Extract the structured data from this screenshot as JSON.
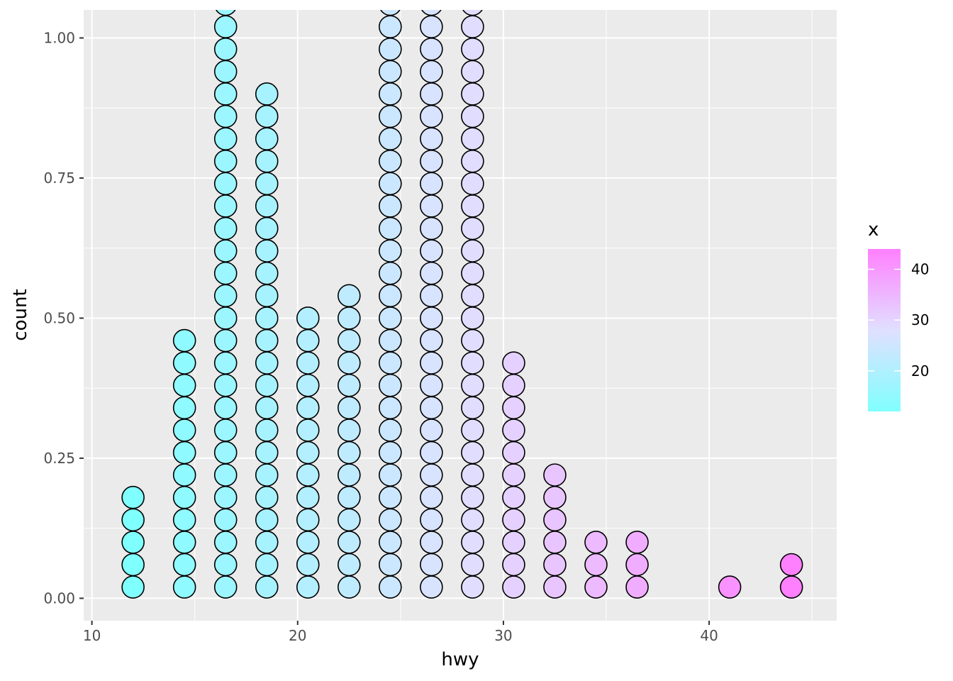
{
  "chart_data": {
    "type": "dotplot",
    "xlabel": "hwy",
    "ylabel": "count",
    "xlim": [
      9.6,
      46.2
    ],
    "ylim": [
      -0.04,
      1.05
    ],
    "x_ticks": [
      10,
      20,
      30,
      40
    ],
    "x_tick_labels": [
      "10",
      "20",
      "30",
      "40"
    ],
    "y_ticks": [
      0.0,
      0.25,
      0.5,
      0.75,
      1.0
    ],
    "y_tick_labels": [
      "0.00",
      "0.25",
      "0.50",
      "0.75",
      "1.00"
    ],
    "grid": true,
    "dot_stack_step": 0.04,
    "dot_first_center": 0.02,
    "dots": [
      {
        "x": 12,
        "count": 5
      },
      {
        "x": 14.5,
        "count": 12
      },
      {
        "x": 16.5,
        "count": 27
      },
      {
        "x": 18.5,
        "count": 23
      },
      {
        "x": 20.5,
        "count": 13
      },
      {
        "x": 22.5,
        "count": 14
      },
      {
        "x": 24.5,
        "count": 27
      },
      {
        "x": 26.5,
        "count": 27
      },
      {
        "x": 28.5,
        "count": 27
      },
      {
        "x": 30.5,
        "count": 11
      },
      {
        "x": 32.5,
        "count": 6
      },
      {
        "x": 34.5,
        "count": 3
      },
      {
        "x": 36.5,
        "count": 3
      },
      {
        "x": 41,
        "count": 1
      },
      {
        "x": 44,
        "count": 2
      }
    ],
    "fill_scale": {
      "title": "x",
      "range": [
        12,
        44
      ],
      "breaks": [
        20,
        30,
        40
      ],
      "break_labels": [
        "20",
        "30",
        "40"
      ],
      "low_color": "#80ffff",
      "high_color": "#ff80ff"
    },
    "legend_position": "right"
  }
}
